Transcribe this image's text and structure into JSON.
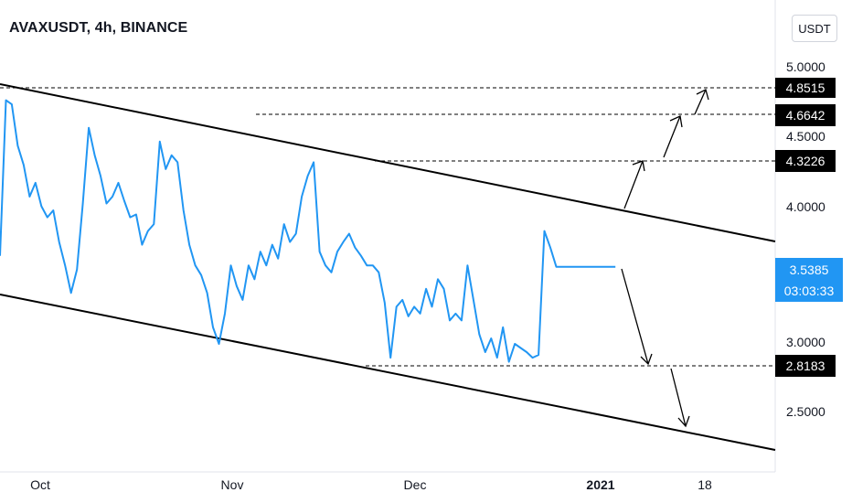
{
  "header": {
    "title": "AVAXUSDT, 4h, BINANCE"
  },
  "currency_button": {
    "label": "USDT"
  },
  "chart_data": {
    "type": "line",
    "title": "AVAXUSDT, 4h, BINANCE",
    "xlabel": "",
    "ylabel": "",
    "x_tick_labels": [
      "Oct",
      "Nov",
      "Dec",
      "2021",
      "18"
    ],
    "y_tick_labels": [
      "5.0000",
      "4.5000",
      "4.0000",
      "3.0000",
      "2.5000"
    ],
    "y_tick_values": [
      5.0,
      4.5,
      4.0,
      3.0,
      2.5
    ],
    "ylim": [
      2.2,
      5.18
    ],
    "xlim": [
      "2020-09-21",
      "2021-01-30"
    ],
    "grid": false,
    "colors": {
      "series": "#2196f3",
      "price_label_bg": "#2196f3",
      "level_label_bg": "#000000",
      "trend_lines": "#000000"
    },
    "series": [
      {
        "x": [
          "2020-09-21",
          "2020-09-22",
          "2020-09-23",
          "2020-09-24",
          "2020-09-25",
          "2020-09-26",
          "2020-09-27",
          "2020-09-28",
          "2020-09-29",
          "2020-09-30",
          "2020-10-01",
          "2020-10-02",
          "2020-10-03",
          "2020-10-04",
          "2020-10-05",
          "2020-10-06",
          "2020-10-07",
          "2020-10-08",
          "2020-10-09",
          "2020-10-10",
          "2020-10-11",
          "2020-10-12",
          "2020-10-13",
          "2020-10-14",
          "2020-10-15",
          "2020-10-16",
          "2020-10-17",
          "2020-10-18",
          "2020-10-19",
          "2020-10-20",
          "2020-10-21",
          "2020-10-22",
          "2020-10-23",
          "2020-10-24",
          "2020-10-25",
          "2020-10-26",
          "2020-10-27",
          "2020-10-28",
          "2020-10-29",
          "2020-10-30",
          "2020-10-31",
          "2020-11-01",
          "2020-11-02",
          "2020-11-03",
          "2020-11-04",
          "2020-11-05",
          "2020-11-06",
          "2020-11-07",
          "2020-11-08",
          "2020-11-09",
          "2020-11-10",
          "2020-11-11",
          "2020-11-12",
          "2020-11-13",
          "2020-11-14",
          "2020-11-15",
          "2020-11-16",
          "2020-11-17",
          "2020-11-18",
          "2020-11-19",
          "2020-11-20",
          "2020-11-21",
          "2020-11-22",
          "2020-11-23",
          "2020-11-24",
          "2020-11-25",
          "2020-11-26",
          "2020-11-27",
          "2020-11-28",
          "2020-11-29",
          "2020-11-30",
          "2020-12-01",
          "2020-12-02",
          "2020-12-03",
          "2020-12-04",
          "2020-12-05",
          "2020-12-06",
          "2020-12-07",
          "2020-12-08",
          "2020-12-09",
          "2020-12-10",
          "2020-12-11",
          "2020-12-12",
          "2020-12-13",
          "2020-12-14",
          "2020-12-15",
          "2020-12-16",
          "2020-12-17",
          "2020-12-18",
          "2020-12-19",
          "2020-12-20",
          "2020-12-21",
          "2020-12-22",
          "2020-12-23",
          "2020-12-24",
          "2020-12-25",
          "2020-12-26",
          "2020-12-27",
          "2020-12-28",
          "2020-12-29",
          "2020-12-30",
          "2020-12-31",
          "2021-01-01",
          "2021-01-02",
          "2021-01-03"
        ],
        "y": [
          3.62,
          4.75,
          4.72,
          4.42,
          4.28,
          4.05,
          4.15,
          3.98,
          3.9,
          3.95,
          3.72,
          3.55,
          3.35,
          3.52,
          4.0,
          4.55,
          4.35,
          4.2,
          4.0,
          4.05,
          4.15,
          4.02,
          3.9,
          3.92,
          3.7,
          3.8,
          3.85,
          4.45,
          4.25,
          4.35,
          4.3,
          3.95,
          3.7,
          3.55,
          3.48,
          3.35,
          3.1,
          2.98,
          3.2,
          3.55,
          3.4,
          3.3,
          3.55,
          3.45,
          3.65,
          3.55,
          3.7,
          3.6,
          3.85,
          3.72,
          3.78,
          4.05,
          4.2,
          4.3,
          3.65,
          3.55,
          3.5,
          3.65,
          3.72,
          3.78,
          3.68,
          3.62,
          3.55,
          3.55,
          3.5,
          3.28,
          2.88,
          3.25,
          3.3,
          3.18,
          3.25,
          3.2,
          3.38,
          3.25,
          3.45,
          3.38,
          3.15,
          3.2,
          3.15,
          3.55,
          3.3,
          3.05,
          2.92,
          3.02,
          2.88,
          3.1,
          2.85,
          2.98,
          2.95,
          2.92,
          2.88,
          2.9,
          3.8,
          3.68,
          3.54,
          3.54,
          3.54,
          3.54,
          3.54,
          3.54,
          3.54,
          3.54,
          3.54,
          3.54,
          3.54
        ]
      }
    ],
    "last_price": "3.5385",
    "countdown": "03:03:33",
    "levels": [
      "4.8515",
      "4.6642",
      "4.3226",
      "2.8183"
    ]
  }
}
